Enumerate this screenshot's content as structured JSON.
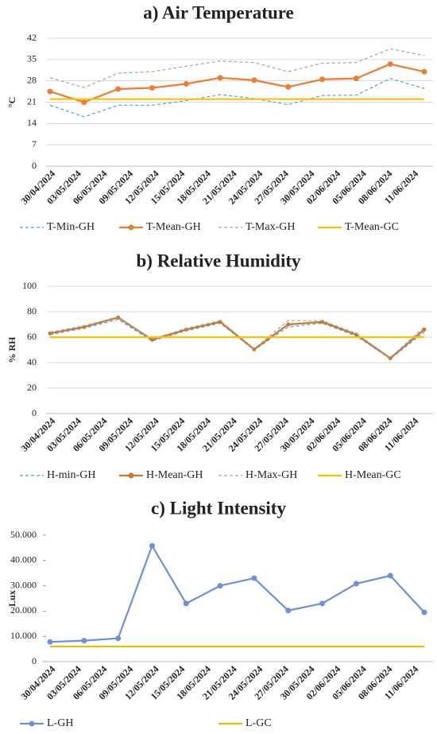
{
  "chart_data": [
    {
      "type": "line",
      "title": "a) Air Temperature",
      "ylabel": "°C",
      "xticks": [
        "30/04/2024",
        "03/05/2024",
        "06/05/2024",
        "09/05/2024",
        "12/05/2024",
        "15/05/2024",
        "18/05/2024",
        "21/05/2024",
        "24/05/2024",
        "27/05/2024",
        "30/05/2024",
        "02/06/2024",
        "05/06/2024",
        "08/06/2024",
        "11/06/2024"
      ],
      "ylim": [
        0,
        42
      ],
      "yticks": [
        0,
        7,
        14,
        21,
        28,
        35,
        42
      ],
      "grid": true,
      "series": [
        {
          "name": "T-Min-GH",
          "color": "#5b9bd5",
          "dash": true,
          "marker": false,
          "values": [
            20,
            16.2,
            20,
            20,
            21.5,
            23.5,
            22.2,
            20.2,
            23.2,
            23.3,
            28.8,
            25.5
          ]
        },
        {
          "name": "T-Mean-GH",
          "color": "#ed7d31",
          "dash": false,
          "marker": true,
          "values": [
            24.5,
            21,
            25.3,
            25.7,
            27,
            29,
            28.2,
            26,
            28.5,
            28.8,
            33.5,
            31
          ]
        },
        {
          "name": "T-Max-GH",
          "color": "#a5a5a5",
          "dash": true,
          "marker": false,
          "values": [
            29,
            25.8,
            30.5,
            31,
            32.8,
            34.5,
            34,
            31,
            33.8,
            34,
            38.5,
            36.3
          ]
        },
        {
          "name": "T-Mean-GC",
          "color": "#ffc000",
          "dash": false,
          "marker": false,
          "values": [
            22,
            22,
            22,
            22,
            22,
            22,
            22,
            22,
            22,
            22,
            22,
            22
          ]
        }
      ]
    },
    {
      "type": "line",
      "title": "b) Relative Humidity",
      "ylabel": "% RH",
      "xticks": [
        "30/04/2024",
        "03/05/2024",
        "06/05/2024",
        "09/05/2024",
        "12/05/2024",
        "15/05/2024",
        "18/05/2024",
        "21/05/2024",
        "24/05/2024",
        "27/05/2024",
        "30/05/2024",
        "02/06/2024",
        "05/06/2024",
        "08/06/2024",
        "11/06/2024"
      ],
      "ylim": [
        0,
        100
      ],
      "yticks": [
        0,
        20,
        40,
        60,
        80,
        100
      ],
      "grid": true,
      "series": [
        {
          "name": "H-min-GH",
          "color": "#5b9bd5",
          "dash": true,
          "marker": false,
          "values": [
            62,
            67,
            74,
            57,
            65,
            71,
            50,
            68,
            71,
            61,
            43,
            64
          ]
        },
        {
          "name": "H-Mean-GH",
          "color": "#c9782a",
          "dash": false,
          "marker": true,
          "values": [
            63,
            68,
            75.5,
            58,
            66,
            72,
            50.5,
            70,
            72,
            62,
            43.5,
            66
          ]
        },
        {
          "name": "H-Max-GH",
          "color": "#a5a5a5",
          "dash": true,
          "marker": false,
          "values": [
            64,
            69,
            76,
            58.5,
            67,
            73,
            51,
            73,
            73,
            63,
            44,
            68
          ]
        },
        {
          "name": "H-Mean-GC",
          "color": "#ffc000",
          "dash": false,
          "marker": false,
          "values": [
            60,
            60,
            60,
            60,
            60,
            60,
            60,
            60,
            60,
            60,
            60,
            60
          ]
        }
      ]
    },
    {
      "type": "line",
      "title": "c) Light Intensity",
      "ylabel": "Lux",
      "xticks": [
        "30/04/2024",
        "03/05/2024",
        "06/05/2024",
        "09/05/2024",
        "12/05/2024",
        "15/05/2024",
        "18/05/2024",
        "21/05/2024",
        "24/05/2024",
        "27/05/2024",
        "30/05/2024",
        "02/06/2024",
        "05/06/2024",
        "08/06/2024",
        "11/06/2024"
      ],
      "ylim": [
        0,
        50000
      ],
      "yticks": [
        0,
        {
          "value": 10000,
          "label": "10.000"
        },
        {
          "value": 20000,
          "label": "20.000"
        },
        {
          "value": 30000,
          "label": "30.000"
        },
        {
          "value": 40000,
          "label": "40.000"
        },
        {
          "value": 50000,
          "label": "50.000"
        }
      ],
      "grid": false,
      "series": [
        {
          "name": "L-GH",
          "color": "#6f8fd8",
          "dash": false,
          "marker": true,
          "values": [
            7800,
            8300,
            9200,
            45800,
            23000,
            30000,
            33000,
            20200,
            23000,
            30800,
            34000,
            19500
          ]
        },
        {
          "name": "L-GC",
          "color": "#e6c000",
          "dash": false,
          "marker": false,
          "values": [
            6000,
            6000,
            6000,
            6000,
            6000,
            6000,
            6000,
            6000,
            6000,
            6000,
            6000,
            6000
          ]
        }
      ]
    }
  ]
}
